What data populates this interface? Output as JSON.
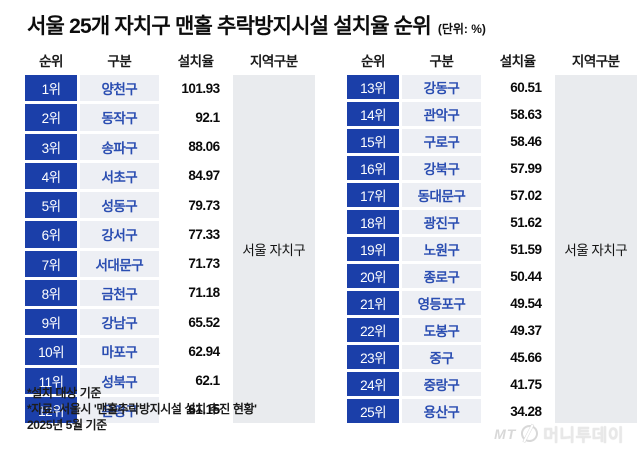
{
  "title": "서울 25개 자치구 맨홀 추락방지시설 설치율 순위",
  "unit": "(단위: %)",
  "columns": [
    "순위",
    "구분",
    "설치율",
    "지역구분"
  ],
  "region_label": "서울 자치구",
  "left_table": {
    "rows": [
      {
        "rank": "1위",
        "district": "양천구",
        "rate": "101.93"
      },
      {
        "rank": "2위",
        "district": "동작구",
        "rate": "92.1"
      },
      {
        "rank": "3위",
        "district": "송파구",
        "rate": "88.06"
      },
      {
        "rank": "4위",
        "district": "서초구",
        "rate": "84.97"
      },
      {
        "rank": "5위",
        "district": "성동구",
        "rate": "79.73"
      },
      {
        "rank": "6위",
        "district": "강서구",
        "rate": "77.33"
      },
      {
        "rank": "7위",
        "district": "서대문구",
        "rate": "71.73"
      },
      {
        "rank": "8위",
        "district": "금천구",
        "rate": "71.18"
      },
      {
        "rank": "9위",
        "district": "강남구",
        "rate": "65.52"
      },
      {
        "rank": "10위",
        "district": "마포구",
        "rate": "62.94"
      },
      {
        "rank": "11위",
        "district": "성북구",
        "rate": "62.1"
      },
      {
        "rank": "12위",
        "district": "은평구",
        "rate": "61.15"
      }
    ]
  },
  "right_table": {
    "rows": [
      {
        "rank": "13위",
        "district": "강동구",
        "rate": "60.51"
      },
      {
        "rank": "14위",
        "district": "관악구",
        "rate": "58.63"
      },
      {
        "rank": "15위",
        "district": "구로구",
        "rate": "58.46"
      },
      {
        "rank": "16위",
        "district": "강북구",
        "rate": "57.99"
      },
      {
        "rank": "17위",
        "district": "동대문구",
        "rate": "57.02"
      },
      {
        "rank": "18위",
        "district": "광진구",
        "rate": "51.62"
      },
      {
        "rank": "19위",
        "district": "노원구",
        "rate": "51.59"
      },
      {
        "rank": "20위",
        "district": "종로구",
        "rate": "50.44"
      },
      {
        "rank": "21위",
        "district": "영등포구",
        "rate": "49.54"
      },
      {
        "rank": "22위",
        "district": "도봉구",
        "rate": "49.37"
      },
      {
        "rank": "23위",
        "district": "중구",
        "rate": "45.66"
      },
      {
        "rank": "24위",
        "district": "중랑구",
        "rate": "41.75"
      },
      {
        "rank": "25위",
        "district": "용산구",
        "rate": "34.28"
      }
    ]
  },
  "footnotes": [
    "*설치 대상 기준",
    "*자료: 서울시 '맨홀추락방지시설 설치 추진 현황'",
    "2025년 5월 기준"
  ],
  "logo": {
    "mt": "MT",
    "name": "머니투데이"
  },
  "colors": {
    "rank_bg": "#1b3fa9",
    "district_bg": "#edeff4",
    "district_text": "#2a4db1",
    "region_bg": "#e9ebee"
  },
  "chart_data": {
    "type": "table",
    "title": "서울 25개 자치구 맨홀 추락방지시설 설치율 순위",
    "unit": "%",
    "columns": [
      "순위",
      "구분",
      "설치율",
      "지역구분"
    ],
    "region": "서울 자치구",
    "categories": [
      "양천구",
      "동작구",
      "송파구",
      "서초구",
      "성동구",
      "강서구",
      "서대문구",
      "금천구",
      "강남구",
      "마포구",
      "성북구",
      "은평구",
      "강동구",
      "관악구",
      "구로구",
      "강북구",
      "동대문구",
      "광진구",
      "노원구",
      "종로구",
      "영등포구",
      "도봉구",
      "중구",
      "중랑구",
      "용산구"
    ],
    "values": [
      101.93,
      92.1,
      88.06,
      84.97,
      79.73,
      77.33,
      71.73,
      71.18,
      65.52,
      62.94,
      62.1,
      61.15,
      60.51,
      58.63,
      58.46,
      57.99,
      57.02,
      51.62,
      51.59,
      50.44,
      49.54,
      49.37,
      45.66,
      41.75,
      34.28
    ],
    "source": "서울시 '맨홀추락방지시설 설치 추진 현황'",
    "as_of": "2025년 5월 기준"
  }
}
